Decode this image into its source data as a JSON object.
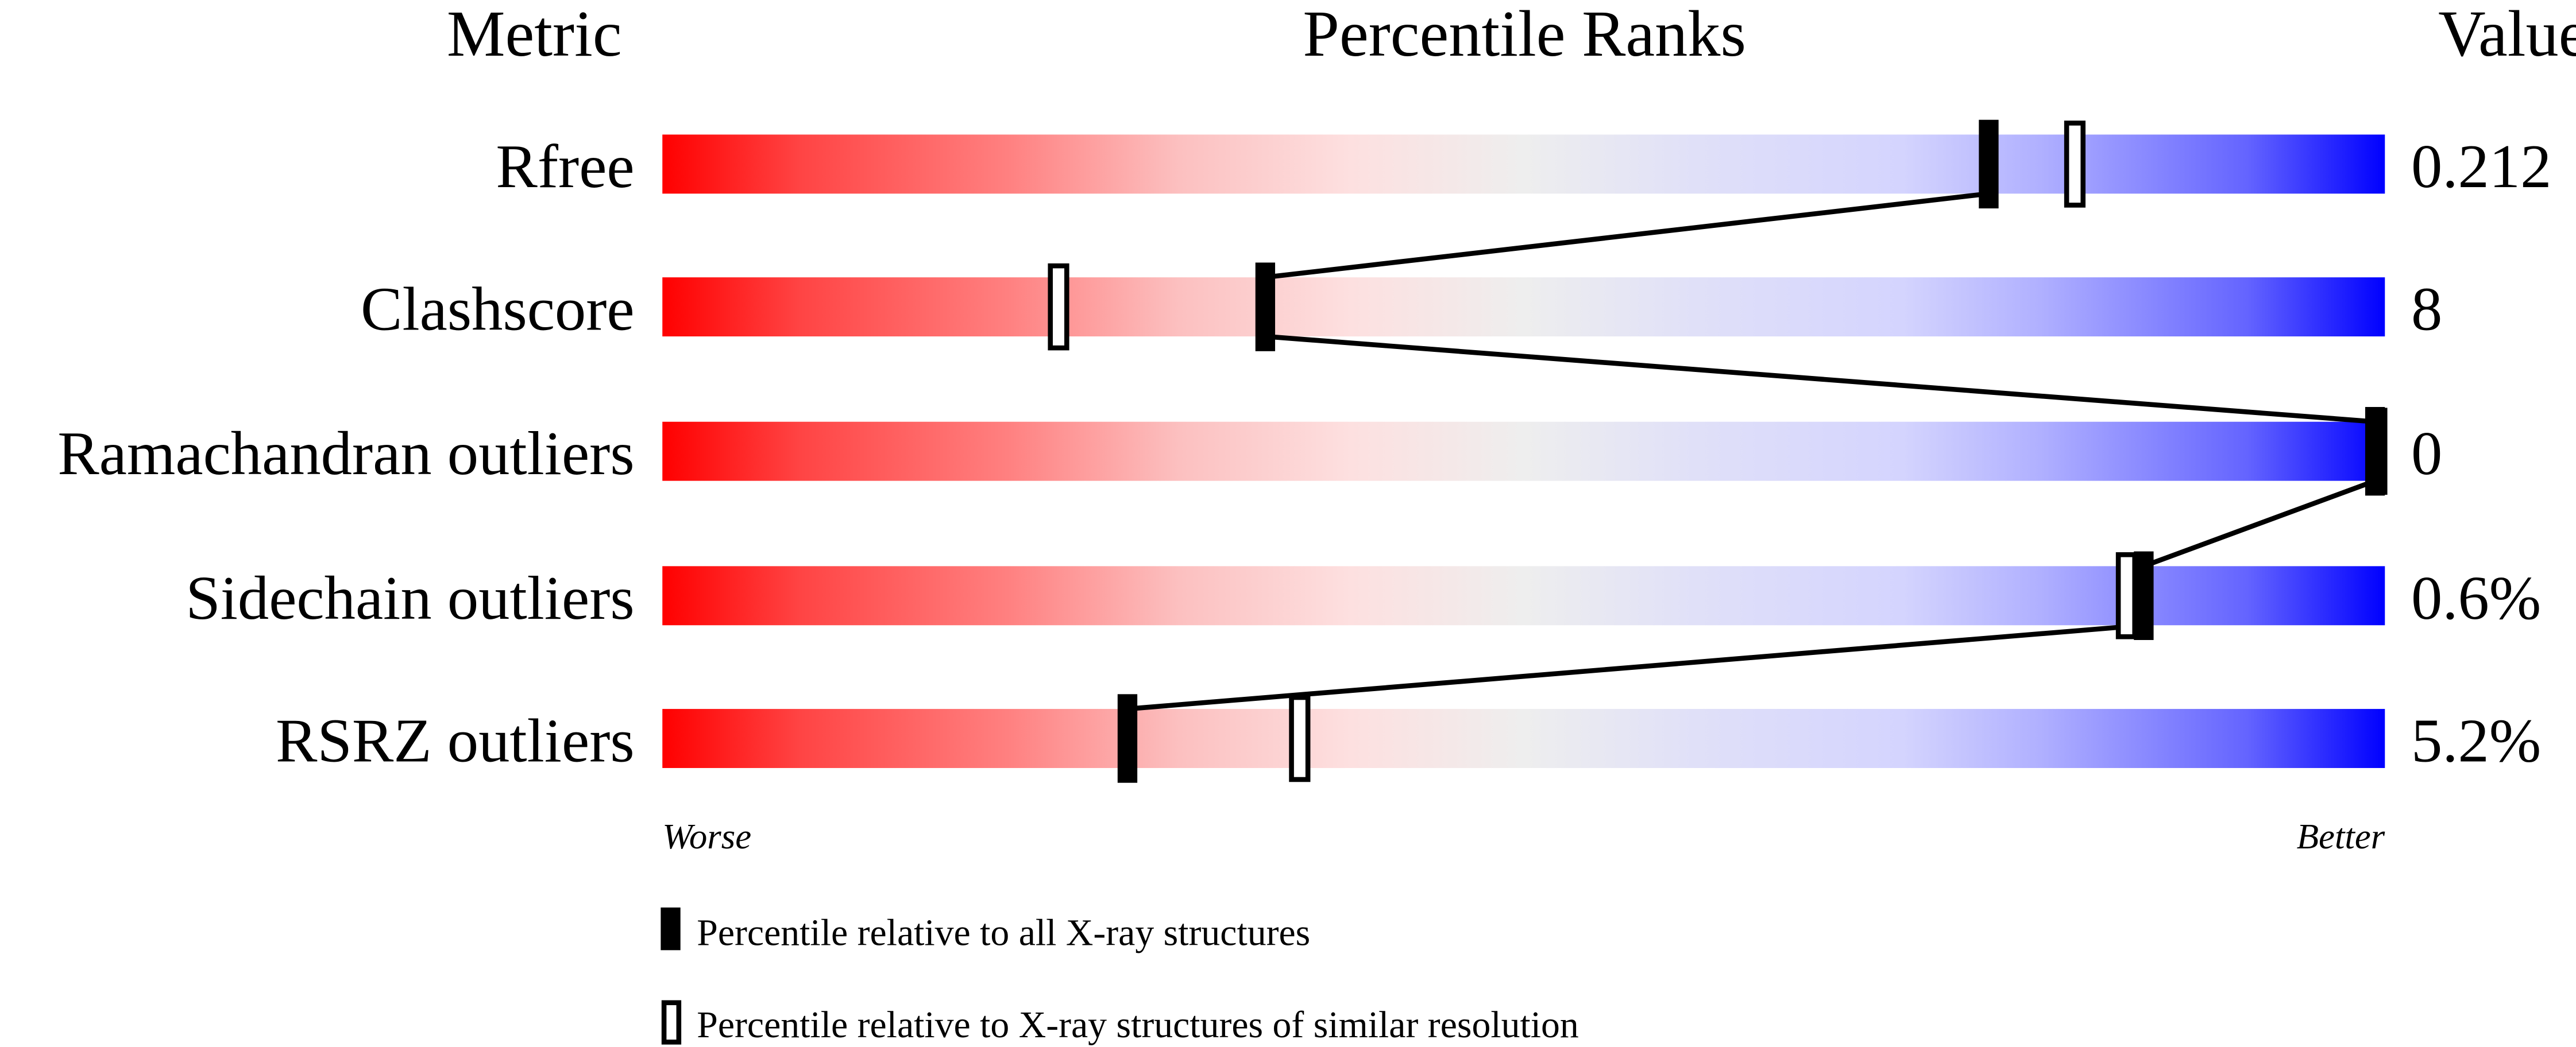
{
  "chart_data": {
    "type": "percentile-slider",
    "headers": {
      "metric": "Metric",
      "ranks": "Percentile Ranks",
      "value": "Value"
    },
    "axis": {
      "left_label": "Worse",
      "right_label": "Better",
      "range": [
        0,
        100
      ]
    },
    "rows": [
      {
        "metric": "Rfree",
        "value": "0.212",
        "percentile_all": 77,
        "percentile_similar": 82
      },
      {
        "metric": "Clashscore",
        "value": "8",
        "percentile_all": 35,
        "percentile_similar": 23
      },
      {
        "metric": "Ramachandran outliers",
        "value": "0",
        "percentile_all": 100,
        "percentile_similar": 100
      },
      {
        "metric": "Sidechain outliers",
        "value": "0.6%",
        "percentile_all": 86,
        "percentile_similar": 85
      },
      {
        "metric": "RSRZ outliers",
        "value": "5.2%",
        "percentile_all": 27,
        "percentile_similar": 37
      }
    ],
    "legend": {
      "all": "Percentile relative to all X-ray structures",
      "similar": "Percentile relative to X-ray structures of similar resolution"
    },
    "colors": {
      "worse": "#ff0000",
      "middle": "#eeeeee",
      "better": "#0000ff",
      "marker": "#000000"
    }
  }
}
